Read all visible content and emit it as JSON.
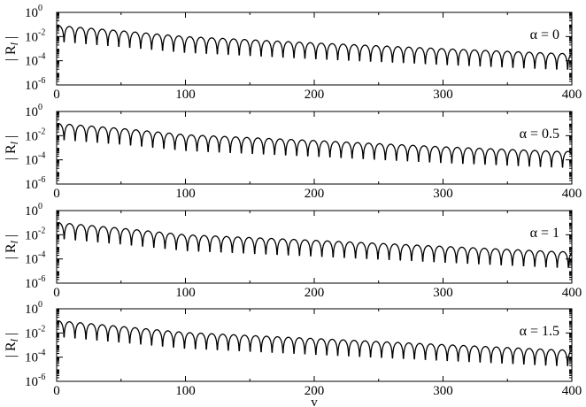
{
  "chart_data": [
    {
      "type": "line",
      "xlabel": "v",
      "ylabel": "|R_l|",
      "ylabel_parts": [
        "|",
        "R",
        "l",
        "|"
      ],
      "annotation": "α = 0",
      "xlim": [
        0,
        400
      ],
      "ylim": [
        1e-06,
        1
      ],
      "yscale": "log",
      "xticks": [
        "0",
        "100",
        "200",
        "300",
        "400"
      ],
      "yticks": [
        {
          "base": "10",
          "exp": "-6"
        },
        {
          "base": "10",
          "exp": "-4"
        },
        {
          "base": "10",
          "exp": "-2"
        },
        {
          "base": "10",
          "exp": "0"
        }
      ],
      "envelope_peaks": {
        "x": [
          2,
          50,
          100,
          200,
          300,
          390
        ],
        "y": [
          0.08,
          0.03,
          0.01,
          0.003,
          0.001,
          0.0004
        ]
      },
      "oscillation_period": 8.5,
      "deep_minima": {
        "x": [
          165,
          300
        ],
        "y": [
          2e-05,
          5e-06
        ]
      },
      "series": [
        {
          "values_note": ""
        }
      ]
    },
    {
      "type": "line",
      "xlabel": "v",
      "ylabel": "|R_l|",
      "ylabel_parts": [
        "|",
        "R",
        "l",
        "|"
      ],
      "annotation": "α = 0.5",
      "xlim": [
        0,
        400
      ],
      "ylim": [
        1e-06,
        1
      ],
      "yscale": "log",
      "xticks": [
        "0",
        "100",
        "200",
        "300",
        "400"
      ],
      "yticks": [
        {
          "base": "10",
          "exp": "-6"
        },
        {
          "base": "10",
          "exp": "-4"
        },
        {
          "base": "10",
          "exp": "-2"
        },
        {
          "base": "10",
          "exp": "0"
        }
      ],
      "envelope_peaks": {
        "x": [
          2,
          50,
          100,
          200,
          300,
          390
        ],
        "y": [
          0.1,
          0.04,
          0.012,
          0.004,
          0.0012,
          0.0005
        ]
      },
      "oscillation_period": 8.6,
      "deep_minima": {
        "x": [
          27,
          65
        ],
        "y": [
          2e-05,
          3e-05
        ]
      },
      "series": [
        {
          "values_note": ""
        }
      ]
    },
    {
      "type": "line",
      "xlabel": "v",
      "ylabel": "|R_l|",
      "ylabel_parts": [
        "|",
        "R",
        "l",
        "|"
      ],
      "annotation": "α = 1",
      "xlim": [
        0,
        400
      ],
      "ylim": [
        1e-06,
        1
      ],
      "yscale": "log",
      "xticks": [
        "0",
        "100",
        "200",
        "300",
        "400"
      ],
      "yticks": [
        {
          "base": "10",
          "exp": "-6"
        },
        {
          "base": "10",
          "exp": "-4"
        },
        {
          "base": "10",
          "exp": "-2"
        },
        {
          "base": "10",
          "exp": "0"
        }
      ],
      "envelope_peaks": {
        "x": [
          2,
          50,
          100,
          200,
          300,
          390
        ],
        "y": [
          0.1,
          0.035,
          0.01,
          0.0035,
          0.0011,
          0.0004
        ]
      },
      "oscillation_period": 8.7,
      "deep_minima": {
        "x": [
          70,
          355
        ],
        "y": [
          1e-05,
          1.5e-06
        ]
      },
      "series": [
        {
          "values_note": ""
        }
      ]
    },
    {
      "type": "line",
      "xlabel": "v",
      "ylabel": "|R_l|",
      "ylabel_parts": [
        "|",
        "R",
        "l",
        "|"
      ],
      "annotation": "α = 1.5",
      "xlim": [
        0,
        400
      ],
      "ylim": [
        1e-06,
        1
      ],
      "yscale": "log",
      "xticks": [
        "0",
        "100",
        "200",
        "300",
        "400"
      ],
      "yticks": [
        {
          "base": "10",
          "exp": "-6"
        },
        {
          "base": "10",
          "exp": "-4"
        },
        {
          "base": "10",
          "exp": "-2"
        },
        {
          "base": "10",
          "exp": "0"
        }
      ],
      "envelope_peaks": {
        "x": [
          2,
          50,
          100,
          200,
          300,
          390
        ],
        "y": [
          0.1,
          0.035,
          0.011,
          0.0035,
          0.0011,
          0.0004
        ]
      },
      "oscillation_period": 8.5,
      "deep_minima": {
        "x": [
          212,
          357
        ],
        "y": [
          1.5e-06,
          1e-05
        ]
      },
      "series": [
        {
          "values_note": ""
        }
      ]
    }
  ],
  "figure": {
    "xaxis_title": "v",
    "line_color": "#000000"
  }
}
